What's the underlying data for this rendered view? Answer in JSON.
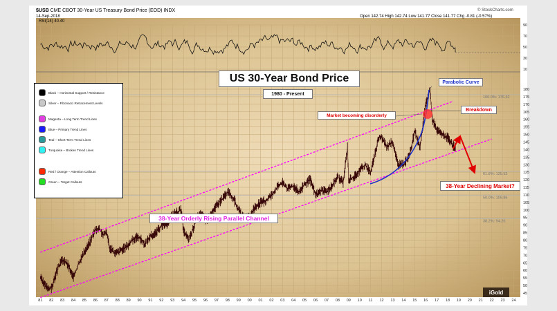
{
  "header": {
    "symbol": "$USB",
    "description": "CME CBOT 30-Year US Treasury Bond Price (EOD)",
    "exchange": "INDX",
    "date": "14-Sep-2018",
    "source": "© StockCharts.com",
    "ohlc": "Open 142.74  High 142.74  Low 141.77  Close 141.77  Chg -0.81 (-0.57%)",
    "rsi_label": "RSI(14) 40.40"
  },
  "labels": {
    "title": "US 30-Year Bond Price",
    "subtitle": "1980 - Present",
    "parabolic": "Parabolic Curve",
    "breakdown": "Breakdown",
    "disorderly": "Market becoming disorderly",
    "declining": "38-Year Declining Market?",
    "channel": "38-Year Orderly Rising Parallel Channel",
    "fib_100": "100.0%: 176.32",
    "fib_618": "61.8%: 125.52",
    "fib_50": "50.0%: 109.86",
    "fib_382": "38.2%: 94.26",
    "watermark": "iGold"
  },
  "legend": [
    {
      "label": "Black – Horizontal Support / Resistance",
      "color": "#000000"
    },
    {
      "label": "Silver – Fibonacci Retracement Levels",
      "color": "#c8c8c8"
    },
    {
      "label": "Magenta – Long Term Trend Lines",
      "color": "#e040e0"
    },
    {
      "label": "Blue – Primary Trend Lines",
      "color": "#1a1aff"
    },
    {
      "label": "Teal – Short Term Trend Lines",
      "color": "#2a9a9a"
    },
    {
      "label": "Turquoise – Broken Trend Lines",
      "color": "#30f0f0"
    },
    {
      "label": "Red / Orange – Attention Callouts",
      "color": "#ff2a00"
    },
    {
      "label": "Green – Target Callouts",
      "color": "#22dd22"
    }
  ],
  "colors": {
    "background": "#dec8a0",
    "price": "#3a0a0a",
    "channel": "#ff00ff",
    "parabolic": "#1e32c8",
    "callout_red": "#dd0000",
    "title_red": "#dd1111",
    "channel_text": "#e020e0",
    "blue_text": "#1e32c8"
  },
  "chart_data": [
    {
      "type": "line",
      "name": "RSI(14)",
      "ylim": [
        10,
        90
      ],
      "y_ticks": [
        90,
        70,
        50,
        30,
        10
      ],
      "last_value": 40.4
    },
    {
      "type": "line",
      "name": "US 30-Year Bond Price",
      "x_ticks": [
        "81",
        "82",
        "83",
        "84",
        "85",
        "86",
        "87",
        "88",
        "89",
        "90",
        "91",
        "92",
        "93",
        "94",
        "95",
        "96",
        "97",
        "98",
        "99",
        "00",
        "01",
        "02",
        "03",
        "04",
        "05",
        "06",
        "07",
        "08",
        "09",
        "10",
        "11",
        "12",
        "13",
        "14",
        "15",
        "16",
        "17",
        "18",
        "19",
        "20",
        "21",
        "22",
        "23",
        "24"
      ],
      "y_ticks": [
        180,
        175,
        170,
        165,
        160,
        155,
        150,
        145,
        140,
        135,
        130,
        125,
        120,
        115,
        110,
        105,
        100,
        95,
        90,
        85,
        80,
        75,
        70,
        65,
        60,
        55,
        50,
        45
      ],
      "ylim": [
        45,
        180
      ],
      "x": [
        1981,
        1981.5,
        1982,
        1982.6,
        1983,
        1983.5,
        1984,
        1984.5,
        1985,
        1985.5,
        1986,
        1986.3,
        1986.8,
        1987,
        1987.3,
        1987.8,
        1988.5,
        1989,
        1989.5,
        1990,
        1990.5,
        1991,
        1991.5,
        1992,
        1992.5,
        1993,
        1993.5,
        1993.8,
        1994,
        1994.5,
        1995,
        1995.5,
        1996,
        1996.5,
        1997,
        1997.5,
        1998,
        1998.5,
        1999,
        1999.5,
        2000,
        2000.5,
        2001,
        2001.5,
        2002,
        2002.5,
        2003,
        2003.5,
        2004,
        2004.5,
        2005,
        2005.5,
        2006,
        2006.5,
        2007,
        2007.5,
        2008,
        2008.5,
        2008.9,
        2009,
        2009.5,
        2010,
        2010.5,
        2011,
        2011.5,
        2011.7,
        2012,
        2012.5,
        2013,
        2013.5,
        2014,
        2014.5,
        2015,
        2015.5,
        2016,
        2016.4,
        2016.6,
        2017,
        2017.5,
        2018,
        2018.4,
        2018.7
      ],
      "y": [
        55,
        49,
        48,
        62,
        67,
        64,
        55,
        65,
        72,
        79,
        87,
        88,
        83,
        86,
        75,
        71,
        74,
        77,
        81,
        82,
        77,
        83,
        85,
        90,
        91,
        97,
        99,
        100,
        86,
        80,
        90,
        99,
        93,
        97,
        103,
        107,
        112,
        108,
        100,
        94,
        95,
        102,
        105,
        106,
        110,
        115,
        118,
        114,
        116,
        112,
        117,
        120,
        110,
        113,
        112,
        116,
        122,
        118,
        142,
        120,
        122,
        126,
        130,
        125,
        140,
        148,
        148,
        142,
        145,
        130,
        130,
        135,
        152,
        142,
        170,
        180,
        160,
        153,
        150,
        148,
        143,
        142
      ],
      "series": [
        {
          "name": "38-Year Orderly Rising Parallel Channel (upper)",
          "x": [
            1981,
            2018.5
          ],
          "y": [
            72,
            172
          ]
        },
        {
          "name": "38-Year Orderly Rising Parallel Channel (lower)",
          "x": [
            1981,
            2022
          ],
          "y": [
            42,
            147
          ]
        }
      ],
      "fib_levels": [
        {
          "label": "100.0%",
          "value": 176.32
        },
        {
          "label": "61.8%",
          "value": 125.52
        },
        {
          "label": "50.0%",
          "value": 109.86
        },
        {
          "label": "38.2%",
          "value": 94.26
        }
      ]
    }
  ]
}
